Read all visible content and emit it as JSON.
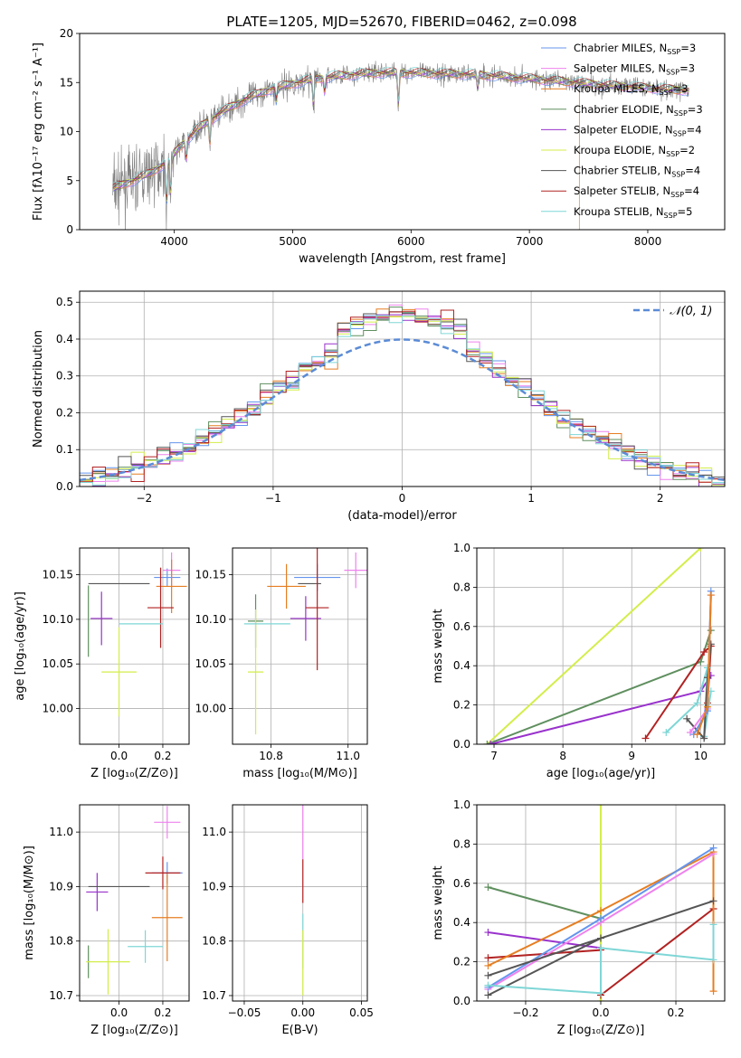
{
  "figure_title": "PLATE=1205, MJD=52670, FIBERID=0462, z=0.098",
  "colors": {
    "Chabrier MILES": "#6495ed",
    "Salpeter MILES": "#ee82ee",
    "Kroupa MILES": "#e67e22",
    "Chabrier ELODIE": "#5f8f5f",
    "Salpeter ELODIE": "#9932cc",
    "Kroupa ELODIE": "#d4ed4a",
    "Chabrier STELIB": "#555555",
    "Salpeter STELIB": "#b22222",
    "Kroupa STELIB": "#7fd6d6",
    "data": "#7f7f7f",
    "normal_curve": "#5b8bd6"
  },
  "chart_data": [
    {
      "id": "spectrum",
      "type": "line",
      "xlabel": "wavelength [Angstrom, rest frame]",
      "ylabel": "Flux [fλ10⁻¹⁷ erg cm⁻² s⁻¹ A⁻¹]",
      "xlim": [
        3200,
        8650
      ],
      "ylim": [
        0,
        20
      ],
      "xticks": [
        4000,
        5000,
        6000,
        7000,
        8000
      ],
      "yticks": [
        0,
        5,
        10,
        15,
        20
      ],
      "legend_position": "right",
      "legend": [
        "Chabrier MILES, N_SSP=3",
        "Salpeter MILES, N_SSP=3",
        "Kroupa MILES, N_SSP=3",
        "Chabrier ELODIE, N_SSP=3",
        "Salpeter ELODIE, N_SSP=4",
        "Kroupa ELODIE, N_SSP=2",
        "Chabrier STELIB, N_SSP=4",
        "Salpeter STELIB, N_SSP=4",
        "Kroupa STELIB, N_SSP=5"
      ],
      "continuum": [
        [
          3480,
          4.2
        ],
        [
          3650,
          5.0
        ],
        [
          3800,
          5.8
        ],
        [
          3950,
          7.0
        ],
        [
          4050,
          8.5
        ],
        [
          4200,
          10.3
        ],
        [
          4400,
          12.0
        ],
        [
          4600,
          13.3
        ],
        [
          4800,
          14.3
        ],
        [
          5000,
          14.9
        ],
        [
          5200,
          15.4
        ],
        [
          5400,
          15.7
        ],
        [
          5700,
          16.0
        ],
        [
          6000,
          16.0
        ],
        [
          6300,
          15.9
        ],
        [
          6600,
          15.8
        ],
        [
          7000,
          15.4
        ],
        [
          7400,
          15.0
        ],
        [
          7800,
          14.6
        ],
        [
          8200,
          14.3
        ],
        [
          8650,
          14.0
        ]
      ],
      "absorption_features": [
        [
          3934,
          -4.5
        ],
        [
          3968,
          -4.0
        ],
        [
          4101,
          -2.0
        ],
        [
          4300,
          -2.5
        ],
        [
          4861,
          -1.5
        ],
        [
          5175,
          -3.0
        ],
        [
          5270,
          -1.5
        ],
        [
          5893,
          -3.5
        ],
        [
          6563,
          -1.5
        ]
      ],
      "masked_drops": [
        {
          "series": "Kroupa ELODIE",
          "x": 6795
        },
        {
          "series": "Kroupa MILES",
          "x": 7420
        },
        {
          "series": "Kroupa STELIB",
          "x": 6795
        }
      ]
    },
    {
      "id": "residuals",
      "type": "histogram",
      "xlabel": "(data-model)/error",
      "ylabel": "Normed distribution",
      "xlim": [
        -2.5,
        2.5
      ],
      "ylim": [
        0,
        0.53
      ],
      "xticks": [
        -2,
        -1,
        0,
        1,
        2
      ],
      "yticks": [
        0.0,
        0.1,
        0.2,
        0.3,
        0.4,
        0.5
      ],
      "legend": [
        "𝒩(0, 1)"
      ],
      "legend_position": "top-right",
      "grid": true,
      "bin_width": 0.1,
      "bin_start": -2.5
    },
    {
      "id": "age_vs_Z",
      "type": "errorbar",
      "xlabel": "Z [log₁₀(Z/Z⊙)]",
      "ylabel": "age  [log₁₀(age/yr)]",
      "xlim": [
        -0.18,
        0.32
      ],
      "ylim": [
        9.96,
        10.18
      ],
      "xticks": [
        0.0,
        0.2
      ],
      "xtick_labels": [
        "0.0",
        "0.2"
      ],
      "yticks": [
        10.0,
        10.05,
        10.1,
        10.15
      ],
      "ytick_labels": [
        "10.00",
        "10.05",
        "10.10",
        "10.15"
      ],
      "grid": true,
      "points": [
        {
          "series": "Chabrier MILES",
          "x": 0.22,
          "y": 10.147,
          "xerr": 0.06,
          "yerr": 0.01
        },
        {
          "series": "Salpeter MILES",
          "x": 0.24,
          "y": 10.155,
          "xerr": 0.04,
          "yerr": 0.02
        },
        {
          "series": "Kroupa MILES",
          "x": 0.24,
          "y": 10.137,
          "xerr": 0.07,
          "yerr": 0.03
        },
        {
          "series": "Chabrier ELODIE",
          "x": -0.14,
          "y": 10.098,
          "xerr": 0.0,
          "yerr": 0.04
        },
        {
          "series": "Salpeter ELODIE",
          "x": -0.08,
          "y": 10.101,
          "xerr": 0.05,
          "yerr": 0.03
        },
        {
          "series": "Kroupa ELODIE",
          "x": 0.0,
          "y": 10.041,
          "xerr": 0.08,
          "yerr": 0.05
        },
        {
          "series": "Chabrier STELIB",
          "x": 0.0,
          "y": 10.14,
          "xerr": 0.14,
          "yerr": 0.0
        },
        {
          "series": "Salpeter STELIB",
          "x": 0.19,
          "y": 10.113,
          "xerr": 0.06,
          "yerr": 0.045
        },
        {
          "series": "Kroupa STELIB",
          "x": 0.1,
          "y": 10.095,
          "xerr": 0.1,
          "yerr": 0.0
        }
      ]
    },
    {
      "id": "age_vs_mass",
      "type": "errorbar",
      "xlabel": "mass [log₁₀(M/M⊙)]",
      "xlim": [
        10.7,
        11.05
      ],
      "ylim": [
        9.96,
        10.18
      ],
      "xticks": [
        10.8,
        11.0
      ],
      "xtick_labels": [
        "10.8",
        "11.0"
      ],
      "yticks": [
        10.0,
        10.05,
        10.1,
        10.15
      ],
      "ytick_labels": [
        "10.00",
        "10.05",
        "10.10",
        "10.15"
      ],
      "grid": true,
      "points": [
        {
          "series": "Chabrier MILES",
          "x": 10.92,
          "y": 10.147,
          "xerr": 0.06,
          "yerr": 0.015
        },
        {
          "series": "Salpeter MILES",
          "x": 11.02,
          "y": 10.155,
          "xerr": 0.03,
          "yerr": 0.02
        },
        {
          "series": "Kroupa MILES",
          "x": 10.84,
          "y": 10.137,
          "xerr": 0.05,
          "yerr": 0.025
        },
        {
          "series": "Chabrier ELODIE",
          "x": 10.76,
          "y": 10.098,
          "xerr": 0.02,
          "yerr": 0.03
        },
        {
          "series": "Salpeter ELODIE",
          "x": 10.89,
          "y": 10.101,
          "xerr": 0.04,
          "yerr": 0.025
        },
        {
          "series": "Kroupa ELODIE",
          "x": 10.76,
          "y": 10.041,
          "xerr": 0.02,
          "yerr": 0.07
        },
        {
          "series": "Chabrier STELIB",
          "x": 10.9,
          "y": 10.14,
          "xerr": 0.03,
          "yerr": 0.0
        },
        {
          "series": "Salpeter STELIB",
          "x": 10.92,
          "y": 10.113,
          "xerr": 0.03,
          "yerr": 0.07
        },
        {
          "series": "Kroupa STELIB",
          "x": 10.79,
          "y": 10.095,
          "xerr": 0.06,
          "yerr": 0.0
        }
      ]
    },
    {
      "id": "mass_weight_vs_age",
      "type": "line",
      "xlabel": "age  [log₁₀(age/yr)]",
      "ylabel": "mass weight",
      "xlim": [
        6.75,
        10.35
      ],
      "ylim": [
        0,
        1.0
      ],
      "xticks": [
        7,
        8,
        9,
        10
      ],
      "yticks": [
        0.0,
        0.2,
        0.4,
        0.6,
        0.8,
        1.0
      ],
      "grid": true,
      "series": [
        {
          "name": "Kroupa ELODIE",
          "points": [
            [
              6.9,
              0.0
            ],
            [
              10.0,
              1.0
            ]
          ]
        },
        {
          "name": "Chabrier ELODIE",
          "points": [
            [
              6.9,
              0.0
            ],
            [
              10.0,
              0.42
            ],
            [
              10.15,
              0.58
            ]
          ]
        },
        {
          "name": "Salpeter ELODIE",
          "points": [
            [
              6.95,
              0.0
            ],
            [
              10.0,
              0.27
            ],
            [
              10.15,
              0.35
            ]
          ]
        },
        {
          "name": "Salpeter STELIB",
          "points": [
            [
              9.2,
              0.03
            ],
            [
              10.05,
              0.47
            ],
            [
              10.15,
              0.5
            ],
            [
              10.1,
              0.21
            ]
          ]
        },
        {
          "name": "Kroupa STELIB",
          "points": [
            [
              9.5,
              0.06
            ],
            [
              9.95,
              0.21
            ],
            [
              10.1,
              0.39
            ],
            [
              10.05,
              0.04
            ],
            [
              10.15,
              0.27
            ]
          ]
        },
        {
          "name": "Chabrier STELIB",
          "points": [
            [
              9.8,
              0.13
            ],
            [
              10.05,
              0.03
            ],
            [
              10.1,
              0.34
            ],
            [
              10.15,
              0.51
            ]
          ]
        },
        {
          "name": "Salpeter MILES",
          "points": [
            [
              9.85,
              0.06
            ],
            [
              10.1,
              0.18
            ],
            [
              10.15,
              0.76
            ]
          ]
        },
        {
          "name": "Chabrier MILES",
          "points": [
            [
              9.9,
              0.05
            ],
            [
              10.1,
              0.17
            ],
            [
              10.15,
              0.78
            ]
          ]
        },
        {
          "name": "Kroupa MILES",
          "points": [
            [
              9.95,
              0.05
            ],
            [
              10.1,
              0.19
            ],
            [
              10.15,
              0.76
            ]
          ]
        }
      ]
    },
    {
      "id": "mass_vs_Z",
      "type": "errorbar",
      "xlabel": "Z [log₁₀(Z/Z⊙)]",
      "ylabel": "mass [log₁₀(M/M⊙)]",
      "xlim": [
        -0.18,
        0.32
      ],
      "ylim": [
        10.69,
        11.05
      ],
      "xticks": [
        0.0,
        0.2
      ],
      "xtick_labels": [
        "0.0",
        "0.2"
      ],
      "yticks": [
        10.7,
        10.8,
        10.9,
        11.0
      ],
      "ytick_labels": [
        "10.7",
        "10.8",
        "10.9",
        "11.0"
      ],
      "grid": true,
      "points": [
        {
          "series": "Chabrier MILES",
          "x": 0.22,
          "y": 10.925,
          "xerr": 0.07,
          "yerr": 0.02
        },
        {
          "series": "Salpeter MILES",
          "x": 0.22,
          "y": 11.018,
          "xerr": 0.06,
          "yerr": 0.03
        },
        {
          "series": "Kroupa MILES",
          "x": 0.22,
          "y": 10.843,
          "xerr": 0.07,
          "yerr": 0.08
        },
        {
          "series": "Chabrier ELODIE",
          "x": -0.14,
          "y": 10.762,
          "xerr": 0.0,
          "yerr": 0.03
        },
        {
          "series": "Salpeter ELODIE",
          "x": -0.1,
          "y": 10.89,
          "xerr": 0.05,
          "yerr": 0.035
        },
        {
          "series": "Kroupa ELODIE",
          "x": -0.05,
          "y": 10.762,
          "xerr": 0.1,
          "yerr": 0.06
        },
        {
          "series": "Chabrier STELIB",
          "x": 0.0,
          "y": 10.9,
          "xerr": 0.14,
          "yerr": 0.0
        },
        {
          "series": "Salpeter STELIB",
          "x": 0.2,
          "y": 10.925,
          "xerr": 0.08,
          "yerr": 0.03
        },
        {
          "series": "Kroupa STELIB",
          "x": 0.12,
          "y": 10.79,
          "xerr": 0.08,
          "yerr": 0.03
        }
      ]
    },
    {
      "id": "mass_vs_ebv",
      "type": "errorbar",
      "xlabel": "E(B-V)",
      "xlim": [
        -0.06,
        0.055
      ],
      "ylim": [
        10.69,
        11.05
      ],
      "xticks": [
        -0.05,
        0.0,
        0.05
      ],
      "xtick_labels": [
        "−0.05",
        "0.00",
        "0.05"
      ],
      "yticks": [
        10.7,
        10.8,
        10.9,
        11.0
      ],
      "ytick_labels": [
        "10.7",
        "10.8",
        "10.9",
        "11.0"
      ],
      "grid": true,
      "points": [
        {
          "series": "Salpeter MILES",
          "x": 0.0,
          "y": 11.0,
          "xerr": 0.0,
          "yerr": 0.05
        },
        {
          "series": "Salpeter STELIB",
          "x": 0.0,
          "y": 10.91,
          "xerr": 0.0,
          "yerr": 0.04
        },
        {
          "series": "Kroupa STELIB",
          "x": 0.0,
          "y": 10.8,
          "xerr": 0.0,
          "yerr": 0.05
        },
        {
          "series": "Kroupa ELODIE",
          "x": 0.0,
          "y": 10.76,
          "xerr": 0.0,
          "yerr": 0.06
        }
      ]
    },
    {
      "id": "mass_weight_vs_Z",
      "type": "line",
      "xlabel": "Z [log₁₀(Z/Z⊙)]",
      "ylabel": "mass weight",
      "xlim": [
        -0.33,
        0.33
      ],
      "ylim": [
        0,
        1.0
      ],
      "xticks": [
        -0.2,
        0.0,
        0.2
      ],
      "xtick_labels": [
        "−0.2",
        "0.0",
        "0.2"
      ],
      "yticks": [
        0.0,
        0.2,
        0.4,
        0.6,
        0.8,
        1.0
      ],
      "grid": true,
      "series": [
        {
          "name": "Kroupa ELODIE",
          "points": [
            [
              0.0,
              0.0
            ],
            [
              0.0,
              1.0
            ]
          ]
        },
        {
          "name": "Chabrier ELODIE",
          "points": [
            [
              -0.3,
              0.58
            ],
            [
              0.0,
              0.42
            ]
          ]
        },
        {
          "name": "Salpeter ELODIE",
          "points": [
            [
              -0.3,
              0.35
            ],
            [
              0.0,
              0.27
            ]
          ]
        },
        {
          "name": "Salpeter STELIB",
          "points": [
            [
              -0.3,
              0.22
            ],
            [
              0.0,
              0.26
            ],
            [
              0.0,
              0.03
            ],
            [
              0.3,
              0.47
            ]
          ]
        },
        {
          "name": "Kroupa MILES",
          "points": [
            [
              -0.3,
              0.18
            ],
            [
              0.0,
              0.46
            ],
            [
              0.3,
              0.76
            ],
            [
              0.3,
              0.05
            ]
          ]
        },
        {
          "name": "Salpeter MILES",
          "points": [
            [
              -0.3,
              0.06
            ],
            [
              0.0,
              0.4
            ],
            [
              0.3,
              0.75
            ]
          ]
        },
        {
          "name": "Chabrier MILES",
          "points": [
            [
              -0.3,
              0.07
            ],
            [
              0.0,
              0.42
            ],
            [
              0.3,
              0.78
            ]
          ]
        },
        {
          "name": "Chabrier STELIB",
          "points": [
            [
              -0.3,
              0.03
            ],
            [
              0.0,
              0.32
            ],
            [
              0.3,
              0.51
            ],
            [
              -0.3,
              0.13
            ]
          ]
        },
        {
          "name": "Kroupa STELIB",
          "points": [
            [
              -0.3,
              0.08
            ],
            [
              0.0,
              0.04
            ],
            [
              0.0,
              0.27
            ],
            [
              0.3,
              0.21
            ],
            [
              0.3,
              0.39
            ]
          ]
        }
      ]
    }
  ]
}
